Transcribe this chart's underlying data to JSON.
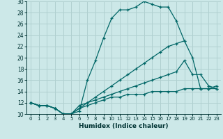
{
  "xlabel": "Humidex (Indice chaleur)",
  "background_color": "#cce8e8",
  "grid_color": "#b0d0d0",
  "line_color": "#006666",
  "xlim": [
    -0.5,
    23.5
  ],
  "ylim": [
    10,
    30
  ],
  "yticks": [
    10,
    12,
    14,
    16,
    18,
    20,
    22,
    24,
    26,
    28,
    30
  ],
  "xticks": [
    0,
    1,
    2,
    3,
    4,
    5,
    6,
    7,
    8,
    9,
    10,
    11,
    12,
    13,
    14,
    15,
    16,
    17,
    18,
    19,
    20,
    21,
    22,
    23
  ],
  "series": [
    {
      "x": [
        0,
        1,
        2,
        3,
        4,
        5,
        6,
        7,
        8,
        9,
        10,
        11,
        12,
        13,
        14,
        15,
        16,
        17,
        18,
        19
      ],
      "y": [
        12,
        11.5,
        11.5,
        11,
        10,
        10,
        10.5,
        16,
        19.5,
        23.5,
        27,
        28.5,
        28.5,
        29,
        30,
        29.5,
        29,
        29,
        26.5,
        23
      ]
    },
    {
      "x": [
        0,
        1,
        2,
        3,
        4,
        5,
        6,
        7,
        8,
        9,
        10,
        11,
        12,
        13,
        14,
        15,
        16,
        17,
        18,
        19,
        20,
        21,
        22,
        23
      ],
      "y": [
        12,
        11.5,
        11.5,
        11,
        10,
        10,
        11,
        12,
        13,
        14,
        15,
        16,
        17,
        18,
        19,
        20,
        21,
        22,
        22.5,
        23,
        20,
        14.5,
        14.5,
        15
      ]
    },
    {
      "x": [
        0,
        1,
        2,
        3,
        4,
        5,
        6,
        7,
        8,
        9,
        10,
        11,
        12,
        13,
        14,
        15,
        16,
        17,
        18,
        19,
        20,
        21,
        22,
        23
      ],
      "y": [
        12,
        11.5,
        11.5,
        11,
        10,
        10,
        11.5,
        12,
        12.5,
        13,
        13.5,
        14,
        14.5,
        15,
        15.5,
        16,
        16.5,
        17,
        17.5,
        19.5,
        17,
        17,
        15,
        14.5
      ]
    },
    {
      "x": [
        0,
        1,
        2,
        3,
        4,
        5,
        6,
        7,
        8,
        9,
        10,
        11,
        12,
        13,
        14,
        15,
        16,
        17,
        18,
        19,
        20,
        21,
        22,
        23
      ],
      "y": [
        12,
        11.5,
        11.5,
        11,
        10,
        10,
        11,
        11.5,
        12,
        12.5,
        13,
        13,
        13.5,
        13.5,
        13.5,
        14,
        14,
        14,
        14,
        14.5,
        14.5,
        14.5,
        14.5,
        14.5
      ]
    }
  ]
}
